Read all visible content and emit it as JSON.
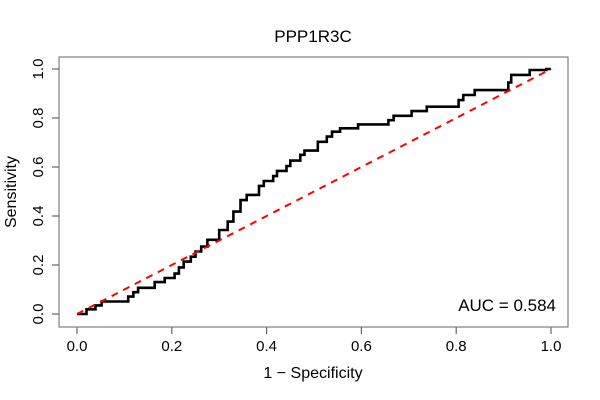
{
  "figure": {
    "title": "PPP1R3C",
    "xlabel": "1 − Specificity",
    "ylabel": "Sensitivity",
    "auc_label": "AUC = 0.584"
  },
  "chart_data": {
    "type": "line",
    "subtype": "roc-curve",
    "title": "PPP1R3C",
    "xlabel": "1 − Specificity",
    "ylabel": "Sensitivity",
    "xlim": [
      0,
      1
    ],
    "ylim": [
      0,
      1
    ],
    "grid": false,
    "legend": "none",
    "x_ticks": [
      "0.0",
      "0.2",
      "0.4",
      "0.6",
      "0.8",
      "1.0"
    ],
    "y_ticks": [
      "0.0",
      "0.2",
      "0.4",
      "0.6",
      "0.8",
      "1.0"
    ],
    "auc": 0.584,
    "annotation": {
      "text": "AUC = 0.584",
      "position": "bottom-right"
    },
    "series": [
      {
        "name": "ROC curve",
        "style": "solid-step",
        "color": "#000000",
        "line_width": 2.6,
        "points": [
          [
            0,
            0
          ],
          [
            0.02,
            0
          ],
          [
            0.02,
            0.019
          ],
          [
            0.039,
            0.019
          ],
          [
            0.039,
            0.035
          ],
          [
            0.052,
            0.035
          ],
          [
            0.052,
            0.051
          ],
          [
            0.108,
            0.051
          ],
          [
            0.108,
            0.071
          ],
          [
            0.119,
            0.071
          ],
          [
            0.119,
            0.089
          ],
          [
            0.129,
            0.089
          ],
          [
            0.129,
            0.107
          ],
          [
            0.164,
            0.107
          ],
          [
            0.164,
            0.13
          ],
          [
            0.185,
            0.13
          ],
          [
            0.185,
            0.147
          ],
          [
            0.206,
            0.147
          ],
          [
            0.206,
            0.165
          ],
          [
            0.215,
            0.165
          ],
          [
            0.215,
            0.19
          ],
          [
            0.225,
            0.19
          ],
          [
            0.225,
            0.214
          ],
          [
            0.24,
            0.214
          ],
          [
            0.24,
            0.234
          ],
          [
            0.25,
            0.234
          ],
          [
            0.25,
            0.255
          ],
          [
            0.262,
            0.255
          ],
          [
            0.262,
            0.275
          ],
          [
            0.275,
            0.275
          ],
          [
            0.275,
            0.303
          ],
          [
            0.3,
            0.303
          ],
          [
            0.3,
            0.343
          ],
          [
            0.318,
            0.343
          ],
          [
            0.318,
            0.377
          ],
          [
            0.33,
            0.377
          ],
          [
            0.33,
            0.418
          ],
          [
            0.345,
            0.418
          ],
          [
            0.345,
            0.465
          ],
          [
            0.358,
            0.465
          ],
          [
            0.358,
            0.486
          ],
          [
            0.384,
            0.486
          ],
          [
            0.384,
            0.523
          ],
          [
            0.394,
            0.523
          ],
          [
            0.394,
            0.543
          ],
          [
            0.414,
            0.543
          ],
          [
            0.414,
            0.563
          ],
          [
            0.422,
            0.563
          ],
          [
            0.422,
            0.584
          ],
          [
            0.442,
            0.584
          ],
          [
            0.442,
            0.604
          ],
          [
            0.45,
            0.604
          ],
          [
            0.45,
            0.626
          ],
          [
            0.471,
            0.626
          ],
          [
            0.471,
            0.65
          ],
          [
            0.48,
            0.65
          ],
          [
            0.48,
            0.667
          ],
          [
            0.508,
            0.667
          ],
          [
            0.508,
            0.703
          ],
          [
            0.527,
            0.703
          ],
          [
            0.527,
            0.724
          ],
          [
            0.538,
            0.724
          ],
          [
            0.538,
            0.744
          ],
          [
            0.555,
            0.744
          ],
          [
            0.555,
            0.758
          ],
          [
            0.593,
            0.758
          ],
          [
            0.593,
            0.774
          ],
          [
            0.657,
            0.774
          ],
          [
            0.657,
            0.791
          ],
          [
            0.668,
            0.791
          ],
          [
            0.668,
            0.809
          ],
          [
            0.706,
            0.809
          ],
          [
            0.706,
            0.828
          ],
          [
            0.738,
            0.828
          ],
          [
            0.738,
            0.846
          ],
          [
            0.805,
            0.846
          ],
          [
            0.805,
            0.873
          ],
          [
            0.815,
            0.873
          ],
          [
            0.815,
            0.894
          ],
          [
            0.839,
            0.894
          ],
          [
            0.839,
            0.914
          ],
          [
            0.91,
            0.914
          ],
          [
            0.91,
            0.945
          ],
          [
            0.916,
            0.945
          ],
          [
            0.916,
            0.976
          ],
          [
            0.955,
            0.976
          ],
          [
            0.955,
            0.996
          ],
          [
            0.99,
            0.996
          ],
          [
            0.99,
            1
          ],
          [
            1,
            1
          ]
        ]
      },
      {
        "name": "chance reference line",
        "style": "dashed",
        "color": "#ff0000",
        "line_width": 2,
        "points": [
          [
            0,
            0
          ],
          [
            1,
            1
          ]
        ]
      }
    ]
  },
  "colors": {
    "curve": "#000000",
    "reference": "#ff0000",
    "frame": "#666666",
    "background": "#ffffff",
    "text": "#000000"
  }
}
